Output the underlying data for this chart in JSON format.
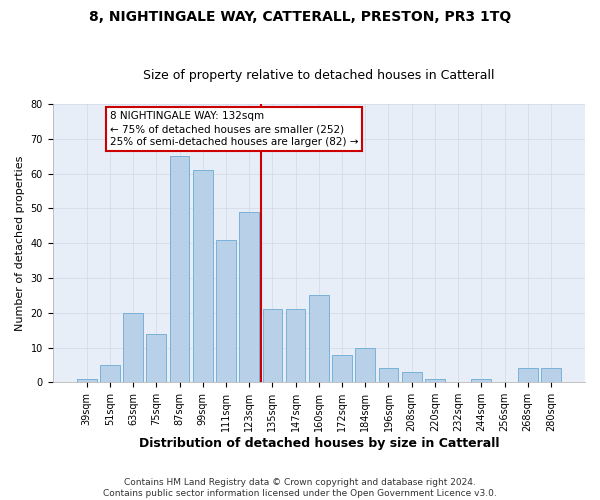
{
  "title": "8, NIGHTINGALE WAY, CATTERALL, PRESTON, PR3 1TQ",
  "subtitle": "Size of property relative to detached houses in Catterall",
  "xlabel": "Distribution of detached houses by size in Catterall",
  "ylabel": "Number of detached properties",
  "categories": [
    "39sqm",
    "51sqm",
    "63sqm",
    "75sqm",
    "87sqm",
    "99sqm",
    "111sqm",
    "123sqm",
    "135sqm",
    "147sqm",
    "160sqm",
    "172sqm",
    "184sqm",
    "196sqm",
    "208sqm",
    "220sqm",
    "232sqm",
    "244sqm",
    "256sqm",
    "268sqm",
    "280sqm"
  ],
  "values": [
    1,
    5,
    20,
    14,
    65,
    61,
    41,
    49,
    21,
    21,
    25,
    8,
    10,
    4,
    3,
    1,
    0,
    1,
    0,
    4,
    4
  ],
  "bar_color": "#b8d0e8",
  "bar_edge_color": "#6aaad4",
  "grid_color": "#d0d8e8",
  "bg_color": "#e8eef8",
  "vline_color": "#cc0000",
  "annotation_text": "8 NIGHTINGALE WAY: 132sqm\n← 75% of detached houses are smaller (252)\n25% of semi-detached houses are larger (82) →",
  "annotation_box_color": "#cc0000",
  "ylim": [
    0,
    80
  ],
  "yticks": [
    0,
    10,
    20,
    30,
    40,
    50,
    60,
    70,
    80
  ],
  "footer": "Contains HM Land Registry data © Crown copyright and database right 2024.\nContains public sector information licensed under the Open Government Licence v3.0.",
  "title_fontsize": 10,
  "subtitle_fontsize": 9,
  "xlabel_fontsize": 9,
  "ylabel_fontsize": 8,
  "tick_fontsize": 7,
  "annotation_fontsize": 7.5,
  "footer_fontsize": 6.5
}
